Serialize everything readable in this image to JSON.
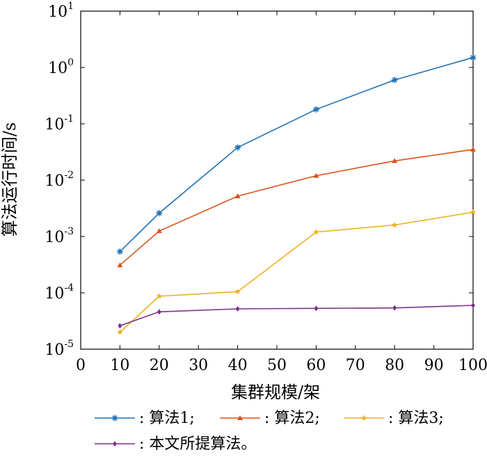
{
  "chart_data": {
    "type": "line",
    "title": "",
    "xlabel": "集群规模/架",
    "ylabel": "算法运行时间/s",
    "xlim": [
      0,
      100
    ],
    "ylim": [
      1e-05,
      10
    ],
    "yscale": "log",
    "grid": false,
    "legend_placement": "bottom",
    "x_ticks": [
      0,
      10,
      20,
      30,
      40,
      50,
      60,
      70,
      80,
      90,
      100
    ],
    "y_ticks": [
      {
        "value": 1e-05,
        "base": "10",
        "exp": "-5"
      },
      {
        "value": 0.0001,
        "base": "10",
        "exp": "-4"
      },
      {
        "value": 0.001,
        "base": "10",
        "exp": "-3"
      },
      {
        "value": 0.01,
        "base": "10",
        "exp": "-2"
      },
      {
        "value": 0.1,
        "base": "10",
        "exp": "-1"
      },
      {
        "value": 1,
        "base": "10",
        "exp": "0"
      },
      {
        "value": 10,
        "base": "10",
        "exp": "1"
      }
    ],
    "x": [
      10,
      20,
      40,
      60,
      80,
      100
    ],
    "series": [
      {
        "name": ": 算法1;",
        "color": "#1f6fb4",
        "marker": "asterisk",
        "values": [
          0.00054,
          0.0026,
          0.038,
          0.18,
          0.6,
          1.5
        ]
      },
      {
        "name": ": 算法2;",
        "color": "#d95319",
        "marker": "triangle",
        "values": [
          0.00031,
          0.00125,
          0.0052,
          0.012,
          0.022,
          0.035
        ]
      },
      {
        "name": ": 算法3;",
        "color": "#edb120",
        "marker": "star",
        "values": [
          2e-05,
          8.7e-05,
          0.000105,
          0.0012,
          0.0016,
          0.0027
        ]
      },
      {
        "name": ": 本文所提算法。",
        "color": "#7e2f8e",
        "marker": "diamond",
        "values": [
          2.6e-05,
          4.6e-05,
          5.2e-05,
          5.3e-05,
          5.4e-05,
          6e-05
        ]
      }
    ]
  }
}
